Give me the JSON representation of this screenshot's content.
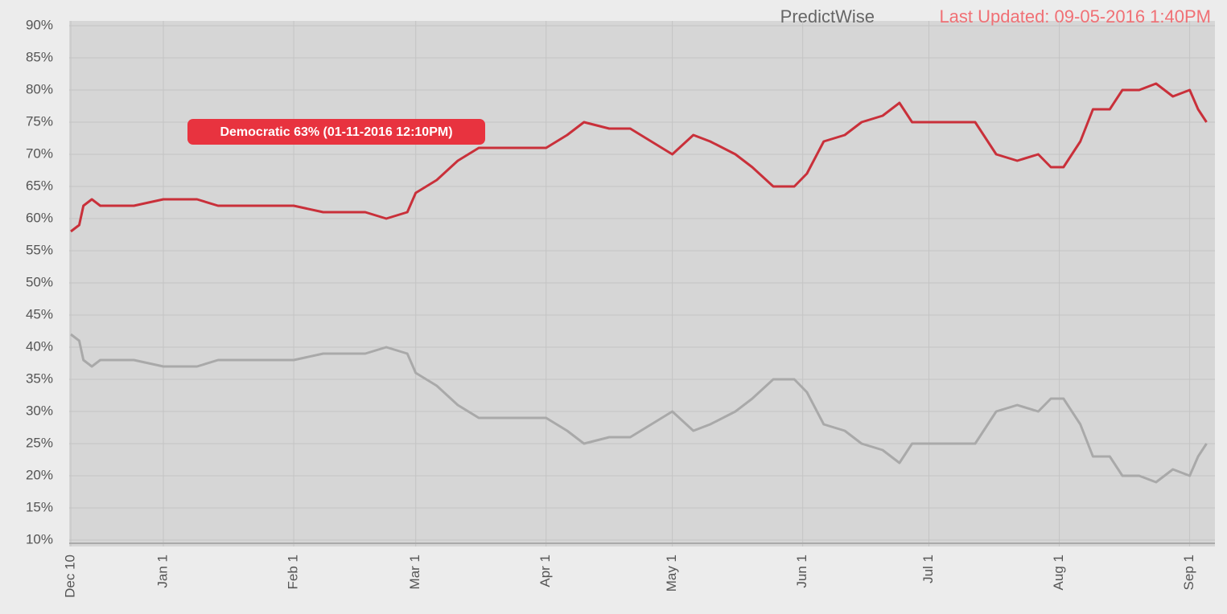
{
  "chart_data": {
    "type": "line",
    "title": "PredictWise",
    "subtitle": "Last Updated: 09-05-2016 1:40PM",
    "annotation": "Democratic 63% (01-11-2016 12:10PM)",
    "x": [
      0,
      2,
      3,
      5,
      7,
      15,
      22,
      30,
      35,
      45,
      53,
      60,
      65,
      70,
      75,
      80,
      82,
      87,
      92,
      97,
      103,
      110,
      113,
      118,
      122,
      128,
      133,
      138,
      143,
      148,
      152,
      158,
      162,
      167,
      172,
      175,
      179,
      184,
      188,
      193,
      197,
      200,
      204,
      210,
      215,
      220,
      225,
      230,
      233,
      236,
      240,
      243,
      247,
      250,
      254,
      258,
      262,
      266,
      268,
      270
    ],
    "series": [
      {
        "color": "#c9303a",
        "values": [
          58,
          59,
          62,
          63,
          62,
          62,
          63,
          63,
          62,
          62,
          62,
          61,
          61,
          61,
          60,
          61,
          64,
          66,
          69,
          71,
          71,
          71,
          71,
          73,
          75,
          74,
          74,
          72,
          70,
          73,
          72,
          70,
          68,
          65,
          65,
          67,
          72,
          73,
          75,
          76,
          78,
          75,
          75,
          75,
          75,
          70,
          69,
          70,
          68,
          68,
          72,
          77,
          77,
          80,
          80,
          81,
          79,
          80,
          77,
          75
        ]
      },
      {
        "color": "#a9a9a9",
        "values": [
          42,
          41,
          38,
          37,
          38,
          38,
          37,
          37,
          38,
          38,
          38,
          39,
          39,
          39,
          40,
          39,
          36,
          34,
          31,
          29,
          29,
          29,
          29,
          27,
          25,
          26,
          26,
          28,
          30,
          27,
          28,
          30,
          32,
          35,
          35,
          33,
          28,
          27,
          25,
          24,
          22,
          25,
          25,
          25,
          25,
          30,
          31,
          30,
          32,
          32,
          28,
          23,
          23,
          20,
          20,
          19,
          21,
          20,
          23,
          25
        ]
      }
    ],
    "xlim": [
      0,
      272
    ],
    "xticks": [
      {
        "value": 0,
        "label": "Dec 10"
      },
      {
        "value": 22,
        "label": "Jan 1"
      },
      {
        "value": 53,
        "label": "Feb 1"
      },
      {
        "value": 82,
        "label": "Mar 1"
      },
      {
        "value": 113,
        "label": "Apr 1"
      },
      {
        "value": 143,
        "label": "May 1"
      },
      {
        "value": 174,
        "label": "Jun 1"
      },
      {
        "value": 204,
        "label": "Jul 1"
      },
      {
        "value": 235,
        "label": "Aug 1"
      },
      {
        "value": 266,
        "label": "Sep 1"
      }
    ],
    "ylim": [
      10,
      90
    ],
    "yticks": [
      {
        "value": 10,
        "label": "10%"
      },
      {
        "value": 15,
        "label": "15%"
      },
      {
        "value": 20,
        "label": "20%"
      },
      {
        "value": 25,
        "label": "25%"
      },
      {
        "value": 30,
        "label": "30%"
      },
      {
        "value": 35,
        "label": "35%"
      },
      {
        "value": 40,
        "label": "40%"
      },
      {
        "value": 45,
        "label": "45%"
      },
      {
        "value": 50,
        "label": "50%"
      },
      {
        "value": 55,
        "label": "55%"
      },
      {
        "value": 60,
        "label": "60%"
      },
      {
        "value": 65,
        "label": "65%"
      },
      {
        "value": 70,
        "label": "70%"
      },
      {
        "value": 75,
        "label": "75%"
      },
      {
        "value": 80,
        "label": "80%"
      },
      {
        "value": 85,
        "label": "85%"
      },
      {
        "value": 90,
        "label": "90%"
      }
    ],
    "grid": true
  }
}
